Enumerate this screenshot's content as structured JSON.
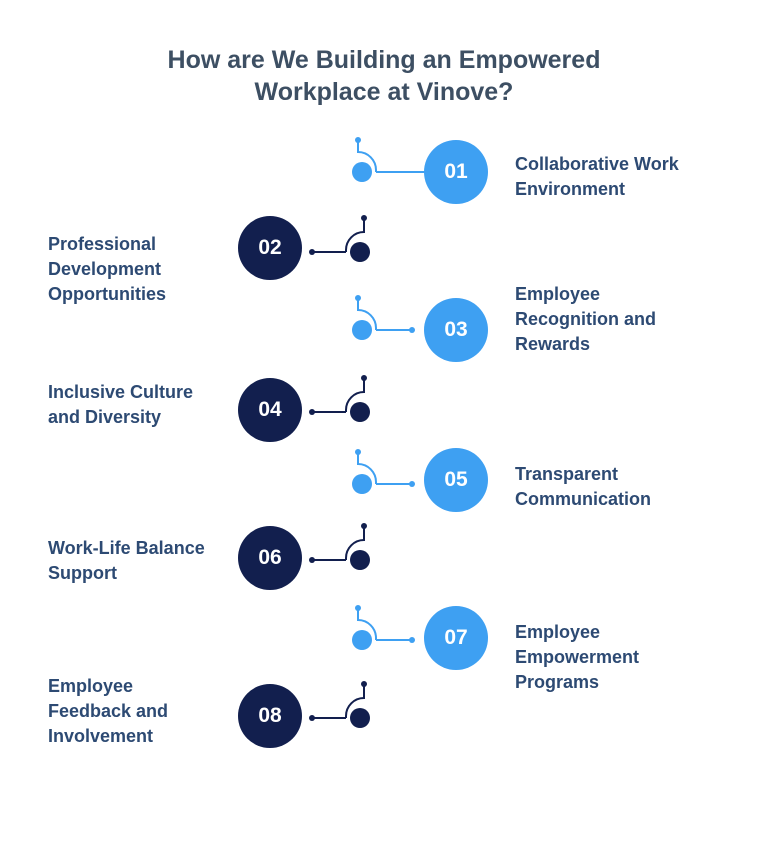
{
  "title": {
    "line1": "How are We Building an Empowered",
    "line2": "Workplace at Vinove?"
  },
  "colors": {
    "light_accent": "#3ea0f2",
    "dark_accent": "#121f4e",
    "title_text": "#3d4f63",
    "label_text": "#2d4a73"
  },
  "steps": [
    {
      "number": "01",
      "line1": "Collaborative Work",
      "line2": "Environment",
      "line3": ""
    },
    {
      "number": "02",
      "line1": "Professional",
      "line2": "Development",
      "line3": "Opportunities"
    },
    {
      "number": "03",
      "line1": "Employee",
      "line2": "Recognition and",
      "line3": "Rewards"
    },
    {
      "number": "04",
      "line1": "Inclusive Culture",
      "line2": "and Diversity",
      "line3": ""
    },
    {
      "number": "05",
      "line1": "Transparent",
      "line2": "Communication",
      "line3": ""
    },
    {
      "number": "06",
      "line1": "Work-Life Balance",
      "line2": "Support",
      "line3": ""
    },
    {
      "number": "07",
      "line1": "Employee",
      "line2": "Empowerment",
      "line3": "Programs"
    },
    {
      "number": "08",
      "line1": "Employee",
      "line2": "Feedback and",
      "line3": "Involvement"
    }
  ]
}
